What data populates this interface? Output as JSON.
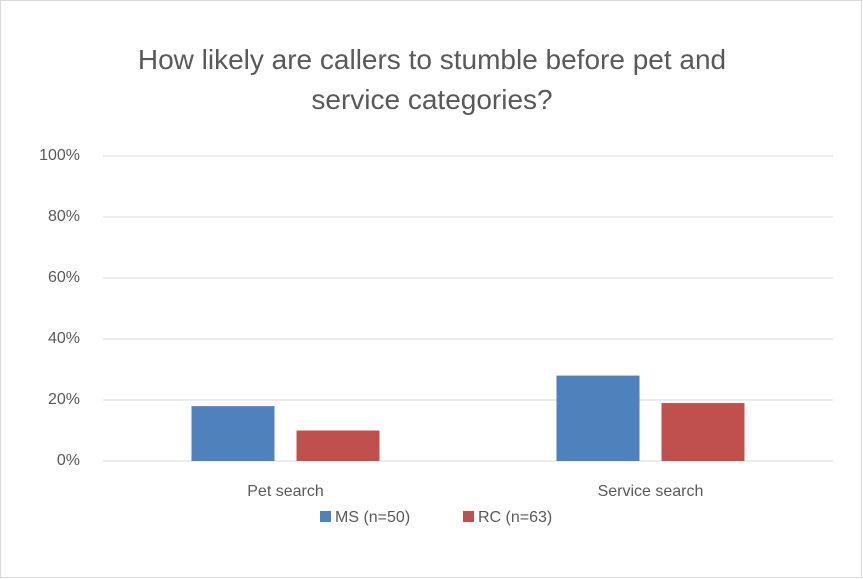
{
  "chart_data": {
    "type": "bar",
    "title": "How likely are callers to stumble before pet and service categories?",
    "categories": [
      "Pet search",
      "Service search"
    ],
    "series": [
      {
        "name": "MS (n=50)",
        "color": "#4f81bd",
        "values": [
          18,
          28
        ]
      },
      {
        "name": "RC (n=63)",
        "color": "#c0504d",
        "values": [
          10,
          19
        ]
      }
    ],
    "ylim": [
      0,
      100
    ],
    "yticks": [
      {
        "value": 0,
        "label": "0%"
      },
      {
        "value": 20,
        "label": "20%"
      },
      {
        "value": 40,
        "label": "40%"
      },
      {
        "value": 60,
        "label": "60%"
      },
      {
        "value": 80,
        "label": "80%"
      },
      {
        "value": 100,
        "label": "100%"
      }
    ],
    "grid": true,
    "legend": "bottom"
  }
}
